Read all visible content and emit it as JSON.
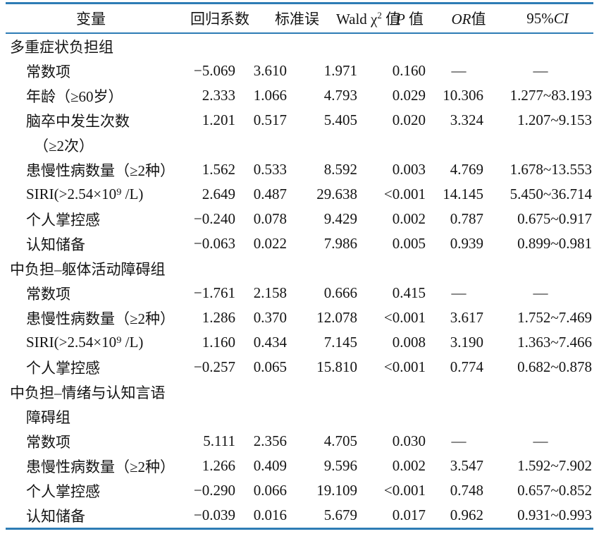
{
  "table": {
    "line_color": "#2e7cb5",
    "header": {
      "variable": "变量",
      "coef": "回归系数",
      "se": "标准误",
      "wald_pre": "Wald χ",
      "wald_sup": "2",
      "wald_post": " 值",
      "p_italic": "P",
      "p_rest": " 值",
      "or_italic": "OR",
      "or_rest": "值",
      "ci_pre": "95%",
      "ci_italic": "CI"
    },
    "rows": [
      {
        "type": "section",
        "label": "多重症状负担组"
      },
      {
        "type": "data",
        "label": "常数项",
        "values": [
          "−5.069",
          "3.610",
          "1.971",
          "0.160",
          "—",
          "—"
        ]
      },
      {
        "type": "data",
        "label": "年龄（≥60岁）",
        "values": [
          "2.333",
          "1.066",
          "4.793",
          "0.029",
          "10.306",
          "1.277~83.193"
        ]
      },
      {
        "type": "data",
        "label": "脑卒中发生次数",
        "values": [
          "1.201",
          "0.517",
          "5.405",
          "0.020",
          "3.324",
          "1.207~9.153"
        ]
      },
      {
        "type": "cont2",
        "label": "（≥2次）"
      },
      {
        "type": "data",
        "label": "患慢性病数量（≥2种）",
        "values": [
          "1.562",
          "0.533",
          "8.592",
          "0.003",
          "4.769",
          "1.678~13.553"
        ]
      },
      {
        "type": "data",
        "label": "SIRI(>2.54×10⁹ /L)",
        "values": [
          "2.649",
          "0.487",
          "29.638",
          "<0.001",
          "14.145",
          "5.450~36.714"
        ]
      },
      {
        "type": "data",
        "label": "个人掌控感",
        "values": [
          "−0.240",
          "0.078",
          "9.429",
          "0.002",
          "0.787",
          "0.675~0.917"
        ]
      },
      {
        "type": "data",
        "label": "认知储备",
        "values": [
          "−0.063",
          "0.022",
          "7.986",
          "0.005",
          "0.939",
          "0.899~0.981"
        ]
      },
      {
        "type": "section",
        "label": "中负担–躯体活动障碍组"
      },
      {
        "type": "data",
        "label": "常数项",
        "values": [
          "−1.761",
          "2.158",
          "0.666",
          "0.415",
          "—",
          "—"
        ]
      },
      {
        "type": "data",
        "label": "患慢性病数量（≥2种）",
        "values": [
          "1.286",
          "0.370",
          "12.078",
          "<0.001",
          "3.617",
          "1.752~7.469"
        ]
      },
      {
        "type": "data",
        "label": "SIRI(>2.54×10⁹ /L)",
        "values": [
          "1.160",
          "0.434",
          "7.145",
          "0.008",
          "3.190",
          "1.363~7.466"
        ]
      },
      {
        "type": "data",
        "label": "个人掌控感",
        "values": [
          "−0.257",
          "0.065",
          "15.810",
          "<0.001",
          "0.774",
          "0.682~0.878"
        ]
      },
      {
        "type": "section",
        "label": "中负担–情绪与认知言语"
      },
      {
        "type": "cont1",
        "label": "障碍组"
      },
      {
        "type": "data",
        "label": "常数项",
        "values": [
          "5.111",
          "2.356",
          "4.705",
          "0.030",
          "—",
          "—"
        ]
      },
      {
        "type": "data",
        "label": "患慢性病数量（≥2种）",
        "values": [
          "1.266",
          "0.409",
          "9.596",
          "0.002",
          "3.547",
          "1.592~7.902"
        ]
      },
      {
        "type": "data",
        "label": "个人掌控感",
        "values": [
          "−0.290",
          "0.066",
          "19.109",
          "<0.001",
          "0.748",
          "0.657~0.852"
        ]
      },
      {
        "type": "data",
        "label": "认知储备",
        "values": [
          "−0.039",
          "0.016",
          "5.679",
          "0.017",
          "0.962",
          "0.931~0.993"
        ]
      }
    ]
  }
}
